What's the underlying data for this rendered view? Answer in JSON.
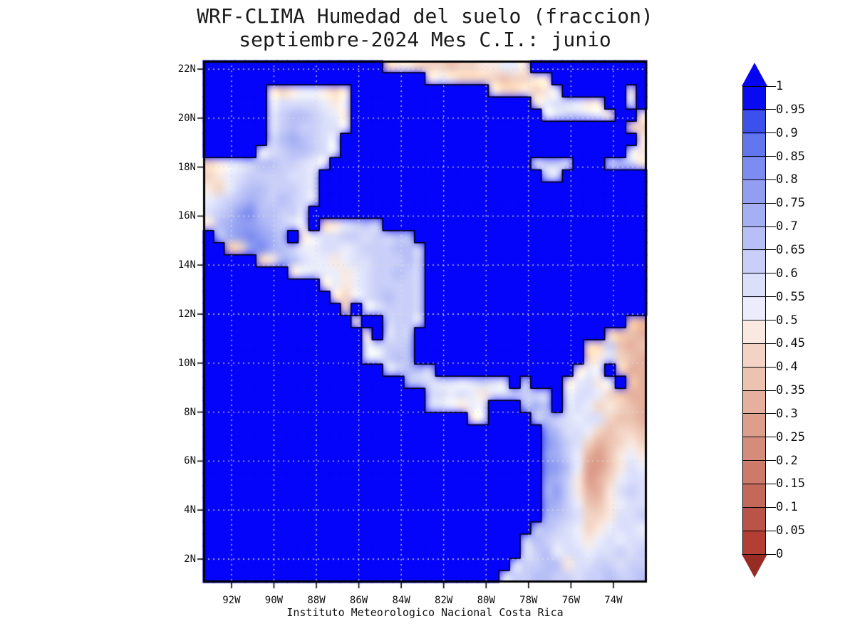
{
  "title": {
    "line1": "WRF-CLIMA Humedad del suelo (fraccion)",
    "line2": "septiembre-2024 Mes C.I.: junio"
  },
  "footer": "Instituto Meteorologico Nacional Costa Rica",
  "axes": {
    "lat_tick_labels": [
      "22N",
      "20N",
      "18N",
      "16N",
      "14N",
      "12N",
      "10N",
      "8N",
      "6N",
      "4N",
      "2N"
    ],
    "lon_tick_labels": [
      "92W",
      "90W",
      "88W",
      "86W",
      "84W",
      "82W",
      "80W",
      "78W",
      "76W",
      "74W"
    ]
  },
  "colorbar": {
    "labels": [
      "1",
      "0.95",
      "0.9",
      "0.85",
      "0.8",
      "0.75",
      "0.7",
      "0.65",
      "0.6",
      "0.55",
      "0.5",
      "0.45",
      "0.4",
      "0.35",
      "0.3",
      "0.25",
      "0.2",
      "0.15",
      "0.1",
      "0.05",
      "0"
    ],
    "bin_colors": [
      "#b23e34",
      "#bb5448",
      "#c4685a",
      "#cd7a6a",
      "#d58c7a",
      "#dd9e8c",
      "#e5b09e",
      "#ecc2b0",
      "#f3d4c4",
      "#fae9e0",
      "#ebedfc",
      "#dbdffa",
      "#c9cff8",
      "#b7bff6",
      "#a4aff4",
      "#919ef2",
      "#7c8cf0",
      "#6276ee",
      "#3c50ec",
      "#080af2"
    ],
    "arrow_top_color": "#0404f0",
    "arrow_bottom_color": "#962c24",
    "ocean_color": "#0404fa"
  },
  "chart_data": {
    "type": "heatmap",
    "title": "WRF-CLIMA Humedad del suelo (fraccion)",
    "subtitle": "septiembre-2024 Mes C.I.: junio",
    "source_caption": "Instituto Meteorologico Nacional Costa Rica",
    "variable": "soil moisture fraction",
    "value_range": [
      0,
      1
    ],
    "contour_interval": 0.05,
    "legend_position": "right",
    "lon_range_deg_west": [
      93.34,
      72.42
    ],
    "lat_range_deg_north": [
      1.04,
      22.35
    ],
    "lat_gridlines": [
      2,
      4,
      6,
      8,
      10,
      12,
      14,
      16,
      18,
      20,
      22
    ],
    "lon_gridlines": [
      74,
      76,
      78,
      80,
      82,
      84,
      86,
      88,
      90,
      92
    ],
    "grid": {
      "encoding": "Each char is a 0.5x0.5 deg cell. Rows run north to south starting at 22.5N, columns west to east starting at 93.5W. Soil moisture value = index of char in '0123456789ABCDEFGHIJK' times 0.05. '~' = water (ocean or lake, drawn saturated blue).",
      "rows": [
        "~~~~~~~~~~~~~~~~~89988878899AA9~~~~~~~~~~~",
        "~~~~~~~~~~~~~~~~~~~~~9A9888878899~~~~~~~~~",
        "~~~~~~989AA989~~~~~~~~~~~~~988989A~~~~~~9~",
        "~~~~~~ABBBBA9A~~~~~~~~~~~~~~~~~9ABBA99~~A~",
        "~~~~~~BCDDCBA9~~~~~~~~~~~~~~~~~~ABCCBA9~~9",
        "~~~~~~BCDCCBBA~~~~~~~~~~~~~~~~~~~~~~~~~~88",
        "~~~~~~CDEDCBA~~~~~~~~~~~~~~~~~~~~~~~~~~~~9",
        "~~~~~ABCDDCBA~~~~~~~~~~~~~~~~~~~~~~~~~~~A9",
        "89ABCDDCCBAA~~~~~~~~~~~~~~~~~~~BCCB~~~CDC9",
        "89ABCCCCBBB~~~~~~~~~~~~~~~~~~~~~CB~~~~~~~~",
        "98ACDDCCCBB~~~~~~~~~~~~~~~~~~~~~~~~~~~~~~~",
        "ABCDEDCDCBB~~~~~~~~~~~~~~~~~~~~~~~~~~~~~~~",
        "BCDFGDDCCB~~~~~~~~~~~~~~~~~~~~~~~~~~~~~~~~",
        "9DEFFEDCBA~89BCDC~~~~~~~~~~~~~~~~~~~~~~~~~",
        "~DEFGFED~9ABBCCBCCDD~~~~~~~~~~~~~~~~~~~~~~",
        "~~78FGEDCAABBABCCCDDC~~~~~~~~~~~~~~~~~~~~~",
        "~~~~~89EDBAA9ABBCCCDC~~~~~~~~~~~~~~~~~~~~~",
        "~~~~~~~~9ABAA9ABCCDCC~~~~~~~~~~~~~~~~~~~~~",
        "~~~~~~~~~~~9A9ABCCCCC~~~~~~~~~~~~~~~~~~~~~",
        "~~~~~~~~~~~~98ABCDCCC~~~~~~~~~~~~~~~~~~~~~",
        "~~~~~~~~~~~~~8~ABCCCC~~~~~~~~~~~~~~~~~~~~~",
        "~~~~~~~~~~~~~~9~~CCCB~~~~~~~~~~~~~~~~~~~76",
        "~~~~~~~~~~~~~~~9~BCC~~~~~~~~~~~~~~~~~~8776",
        "~~~~~~~~~~~~~~~ABCCD~~~~~~~~~~~~~~~~88C767",
        "~~~~~~~~~~~~~~~BACDD~~~~~~~~~~~~~~~~89B876",
        "~~~~~~~~~~~~~~~~~BCDDC~~~~~~~~~~~~~9AA~866",
        "~~~~~~~~~~~~~~~~~~~DCBBBABCBB~C~~~9AB9A~76",
        "~~~~~~~~~~~~~~~~~~~~~CBABA9BBCCCC~ABBA8766",
        "~~~~~~~~~~~~~~~~~~~~~CBA9AA~~~DED~BBA89876",
        "~~~~~~~~~~~~~~~~~~~~~~~~~9A~~~~CDCBABB8776",
        "~~~~~~~~~~~~~~~~~~~~~~~~~~~~~~~~FDBBA87887",
        "~~~~~~~~~~~~~~~~~~~~~~~~~~~~~~~~GECB867898",
        "~~~~~~~~~~~~~~~~~~~~~~~~~~~~~~~~FECA6579A9",
        "~~~~~~~~~~~~~~~~~~~~~~~~~~~~~~~~GFDA5579BA",
        "~~~~~~~~~~~~~~~~~~~~~~~~~~~~~~~~FEC9568ABB",
        "~~~~~~~~~~~~~~~~~~~~~~~~~~~~~~~~EFC9669BCB",
        "~~~~~~~~~~~~~~~~~~~~~~~~~~~~~~~~FECA779ABB",
        "~~~~~~~~~~~~~~~~~~~~~~~~~~~~~~~~EDCB889BBC",
        "~~~~~~~~~~~~~~~~~~~~~~~~~~~~~~~DDCBA89ABBA",
        "~~~~~~~~~~~~~~~~~~~~~~~~~~~~~~CDCBBA9ABABB",
        "~~~~~~~~~~~~~~~~~~~~~~~~~~~~~~BCDABBABBCBC",
        "~~~~~~~~~~~~~~~~~~~~~~~~~~~~~BCCDD9BBCCBCC",
        "~~~~~~~~~~~~~~~~~~~~~~~~~~~~BCCDDCCBCCDCCD"
      ]
    }
  }
}
